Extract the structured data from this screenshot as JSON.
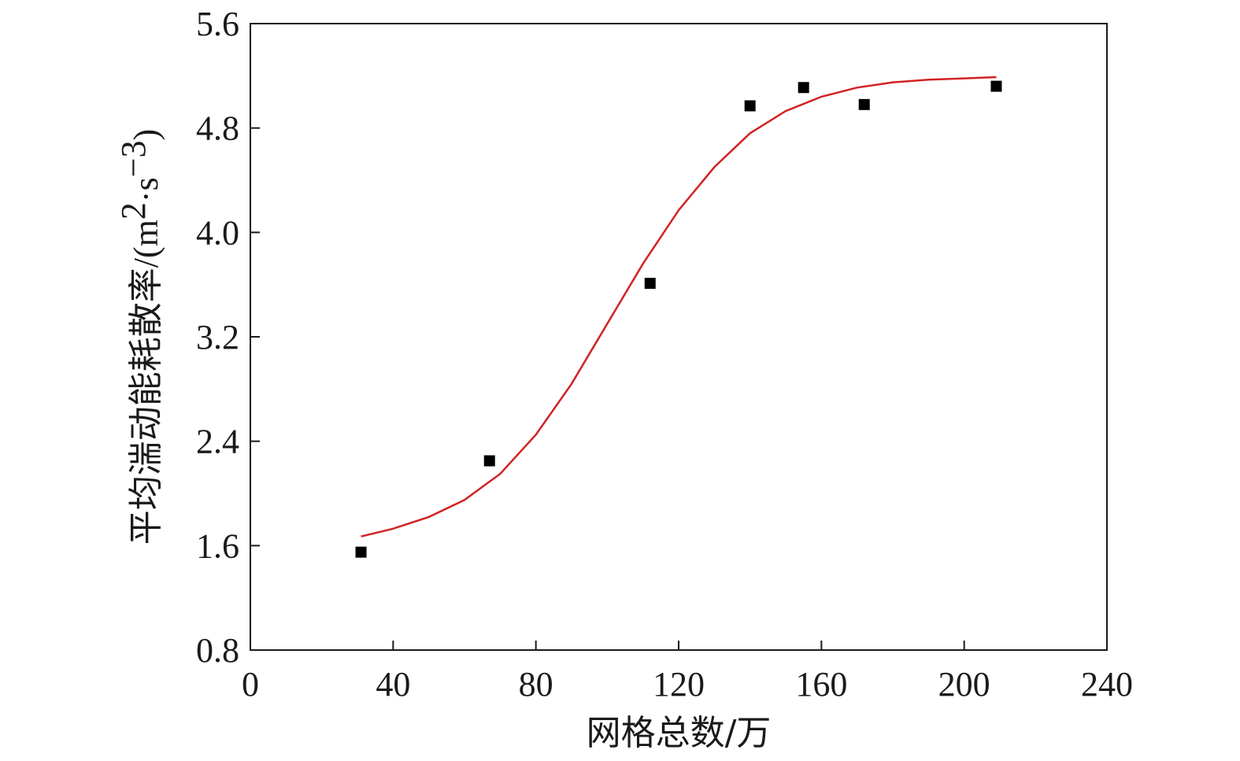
{
  "chart_data": {
    "type": "scatter",
    "xlabel": "网格总数/万",
    "ylabel_text": "平均湍动能耗散率",
    "ylabel_unit_open": "/(m",
    "ylabel_unit_sup1": "2",
    "ylabel_unit_mid": "·s",
    "ylabel_unit_sup2": "−3",
    "ylabel_unit_close": ")",
    "xlim": [
      0,
      240
    ],
    "ylim": [
      0.8,
      5.6
    ],
    "xticks": [
      0,
      40,
      80,
      120,
      160,
      200,
      240
    ],
    "xtick_labels": [
      "0",
      "40",
      "80",
      "120",
      "160",
      "200",
      "240"
    ],
    "yticks": [
      0.8,
      1.6,
      2.4,
      3.2,
      4.0,
      4.8,
      5.6
    ],
    "ytick_labels": [
      "0.8",
      "1.6",
      "2.4",
      "3.2",
      "4.0",
      "4.8",
      "5.6"
    ],
    "grid": false,
    "series": [
      {
        "kind": "points",
        "marker": "square",
        "color": "#000000",
        "x": [
          31,
          67,
          112,
          140,
          155,
          172,
          209
        ],
        "y": [
          1.55,
          2.25,
          3.61,
          4.97,
          5.11,
          4.98,
          5.12
        ]
      },
      {
        "kind": "fit-curve",
        "color": "#d22222",
        "x": [
          31,
          40,
          50,
          60,
          70,
          80,
          90,
          100,
          110,
          120,
          130,
          140,
          150,
          160,
          170,
          180,
          190,
          200,
          209
        ],
        "y": [
          1.67,
          1.73,
          1.82,
          1.95,
          2.15,
          2.45,
          2.84,
          3.3,
          3.76,
          4.17,
          4.5,
          4.76,
          4.93,
          5.04,
          5.11,
          5.15,
          5.17,
          5.18,
          5.19
        ]
      }
    ]
  }
}
